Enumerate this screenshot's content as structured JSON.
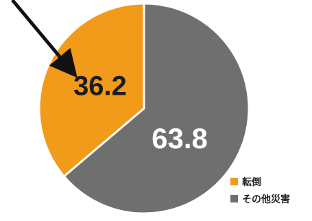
{
  "chart_data": {
    "type": "pie",
    "title": "",
    "slices": [
      {
        "name": "転倒",
        "value": 36.2,
        "label": "36.2",
        "color": "#f29a1a",
        "label_color": "#1c1c1c"
      },
      {
        "name": "その他災害",
        "value": 63.8,
        "label": "63.8",
        "color": "#6f6f6f",
        "label_color": "#ffffff"
      }
    ],
    "start_angle": "12 o'clock",
    "direction": "counterclockwise for 転倒 (left side)",
    "legend": {
      "placement": "bottom-right",
      "entries": [
        "転倒",
        "その他災害"
      ]
    },
    "annotation": {
      "type": "arrow",
      "points_to": "転倒",
      "color": "#111111"
    }
  }
}
